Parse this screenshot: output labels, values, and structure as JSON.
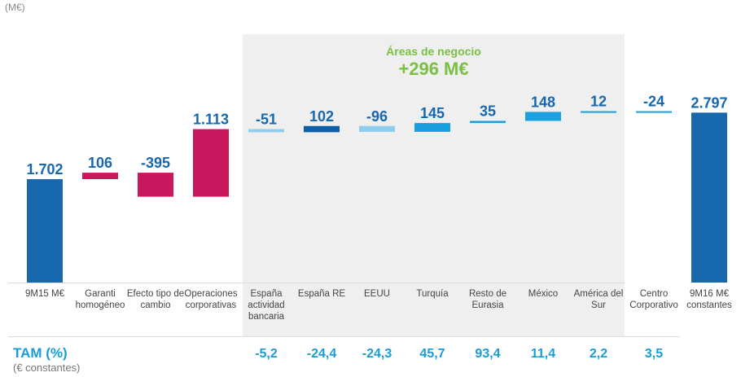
{
  "chart_data": {
    "type": "waterfall",
    "unit_label": "(M€)",
    "categories": [
      "9M15 M€",
      "Garanti homogéneo",
      "Efecto tipo de cambio",
      "Operaciones corporativas",
      "España actividad bancaria",
      "España RE",
      "EEUU",
      "Turquía",
      "Resto de Eurasia",
      "México",
      "América del Sur",
      "Centro Corporativo",
      "9M16 M€ constantes"
    ],
    "values": [
      1702,
      106,
      -395,
      1113,
      -51,
      102,
      -96,
      145,
      35,
      148,
      12,
      -24,
      2797
    ],
    "value_labels": [
      "1.702",
      "106",
      "-395",
      "1.113",
      "-51",
      "102",
      "-96",
      "145",
      "35",
      "148",
      "12",
      "-24",
      "2.797"
    ],
    "kinds": [
      "total",
      "delta",
      "delta",
      "delta",
      "delta",
      "delta",
      "delta",
      "delta",
      "delta",
      "delta",
      "delta",
      "delta",
      "total"
    ],
    "colors": [
      "#1767ad",
      "#c8175d",
      "#c8175d",
      "#c8175d",
      "#8ecdee",
      "#0f5fa8",
      "#8ecdee",
      "#1a9fe0",
      "#1a9fe0",
      "#1a9fe0",
      "#1a9fe0",
      "#1a9fe0",
      "#1767ad"
    ],
    "label_color": "#1767ad",
    "highlight": {
      "title": "Áreas de negocio",
      "total": "+296 M€",
      "color": "#7ac143"
    },
    "tam": {
      "title": "TAM (%)",
      "subtitle": "(€ constantes)",
      "values": [
        "",
        "",
        "",
        "",
        "-5,2",
        "-24,4",
        "-24,3",
        "45,7",
        "93,4",
        "11,4",
        "2,2",
        "3,5",
        ""
      ]
    }
  }
}
